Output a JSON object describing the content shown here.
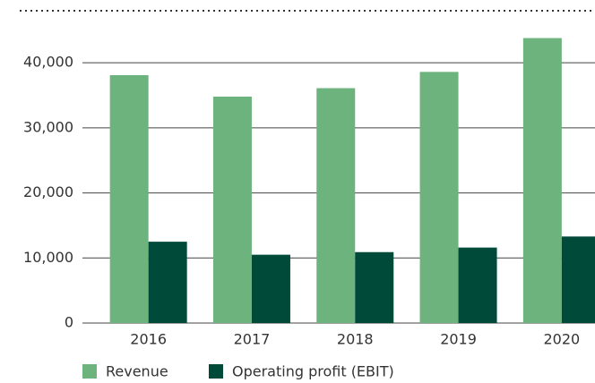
{
  "chart_data": {
    "type": "bar",
    "categories": [
      "2016",
      "2017",
      "2018",
      "2019",
      "2020"
    ],
    "series": [
      {
        "name": "Revenue",
        "color": "#6db37e",
        "values": [
          38100,
          34800,
          36100,
          38600,
          43800
        ]
      },
      {
        "name": "Operating profit (EBIT)",
        "color": "#004a3a",
        "values": [
          12500,
          10500,
          10900,
          11600,
          13300
        ]
      }
    ],
    "ylim": [
      0,
      48000
    ],
    "yticks": [
      0,
      {
        "value": 10000,
        "label": "10,000"
      },
      {
        "value": 20000,
        "label": "20,000"
      },
      {
        "value": 30000,
        "label": "30,000"
      },
      {
        "value": 40000,
        "label": "40,000"
      }
    ],
    "grid": true
  }
}
